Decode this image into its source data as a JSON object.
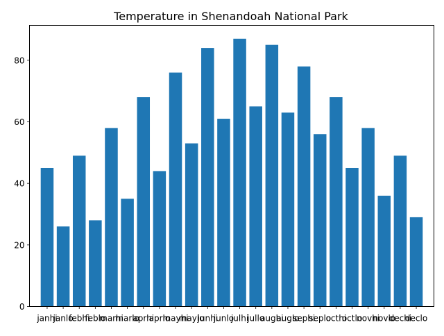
{
  "chart_data": {
    "type": "bar",
    "title": "Temperature in Shenandoah National Park",
    "xlabel": "",
    "ylabel": "",
    "categories": [
      "janhi",
      "janlo",
      "febhi",
      "feblo",
      "marhi",
      "marlo",
      "aprhi",
      "aprlo",
      "mayhi",
      "maylo",
      "junhi",
      "junlo",
      "julhi",
      "jullo",
      "aughi",
      "auglo",
      "sephi",
      "seplo",
      "octhi",
      "octlo",
      "novhi",
      "novlo",
      "dechi",
      "declo"
    ],
    "values": [
      45,
      26,
      49,
      28,
      58,
      35,
      68,
      44,
      76,
      53,
      84,
      61,
      87,
      65,
      85,
      63,
      78,
      56,
      68,
      45,
      58,
      36,
      49,
      29
    ],
    "ylim": [
      0,
      91.35
    ],
    "yticks": [
      0,
      20,
      40,
      60,
      80
    ],
    "grid": false,
    "bar_color": "#1f77b4"
  }
}
